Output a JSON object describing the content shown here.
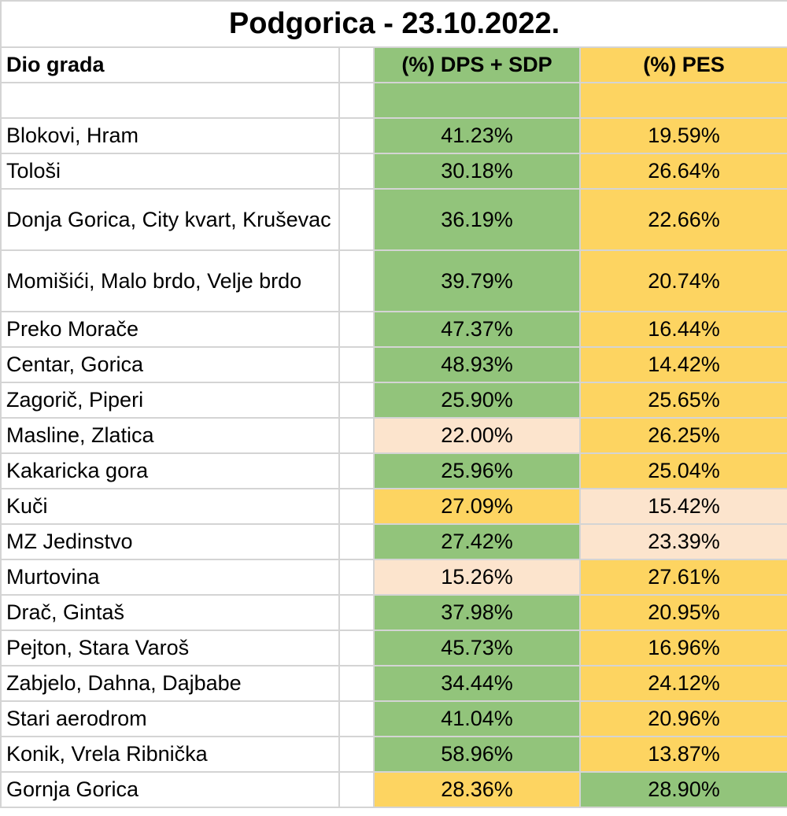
{
  "title": "Podgorica - 23.10.2022.",
  "headers": {
    "area": "Dio grada",
    "dps": "(%) DPS + SDP",
    "pes": "(%) PES"
  },
  "colors": {
    "green": "#92c47b",
    "yellow": "#fdd461",
    "peach": "#fce4cd",
    "white": "#ffffff"
  },
  "rows": [
    {
      "area": "Blokovi, Hram",
      "dps": "41.23%",
      "pes": "19.59%",
      "dps_color": "green",
      "pes_color": "yellow",
      "lines": 1
    },
    {
      "area": "Tološi",
      "dps": "30.18%",
      "pes": "26.64%",
      "dps_color": "green",
      "pes_color": "yellow",
      "lines": 1
    },
    {
      "area": "Donja Gorica, City kvart, Kruševac",
      "dps": "36.19%",
      "pes": "22.66%",
      "dps_color": "green",
      "pes_color": "yellow",
      "lines": 2
    },
    {
      "area": "Momišići, Malo brdo, Velje brdo",
      "dps": "39.79%",
      "pes": "20.74%",
      "dps_color": "green",
      "pes_color": "yellow",
      "lines": 2
    },
    {
      "area": "Preko Morače",
      "dps": "47.37%",
      "pes": "16.44%",
      "dps_color": "green",
      "pes_color": "yellow",
      "lines": 1
    },
    {
      "area": "Centar, Gorica",
      "dps": "48.93%",
      "pes": "14.42%",
      "dps_color": "green",
      "pes_color": "yellow",
      "lines": 1
    },
    {
      "area": "Zagorič, Piperi",
      "dps": "25.90%",
      "pes": "25.65%",
      "dps_color": "green",
      "pes_color": "yellow",
      "lines": 1
    },
    {
      "area": "Masline, Zlatica",
      "dps": "22.00%",
      "pes": "26.25%",
      "dps_color": "peach",
      "pes_color": "yellow",
      "lines": 1
    },
    {
      "area": "Kakaricka gora",
      "dps": "25.96%",
      "pes": "25.04%",
      "dps_color": "green",
      "pes_color": "yellow",
      "lines": 1
    },
    {
      "area": "Kuči",
      "dps": "27.09%",
      "pes": "15.42%",
      "dps_color": "yellow",
      "pes_color": "peach",
      "lines": 1
    },
    {
      "area": "MZ Jedinstvo",
      "dps": "27.42%",
      "pes": "23.39%",
      "dps_color": "green",
      "pes_color": "peach",
      "lines": 1
    },
    {
      "area": "Murtovina",
      "dps": "15.26%",
      "pes": "27.61%",
      "dps_color": "peach",
      "pes_color": "yellow",
      "lines": 1
    },
    {
      "area": "Drač, Gintaš",
      "dps": "37.98%",
      "pes": "20.95%",
      "dps_color": "green",
      "pes_color": "yellow",
      "lines": 1
    },
    {
      "area": "Pejton, Stara Varoš",
      "dps": "45.73%",
      "pes": "16.96%",
      "dps_color": "green",
      "pes_color": "yellow",
      "lines": 1
    },
    {
      "area": "Zabjelo, Dahna, Dajbabe",
      "dps": "34.44%",
      "pes": "24.12%",
      "dps_color": "green",
      "pes_color": "yellow",
      "lines": 1
    },
    {
      "area": "Stari aerodrom",
      "dps": "41.04%",
      "pes": "20.96%",
      "dps_color": "green",
      "pes_color": "yellow",
      "lines": 1
    },
    {
      "area": "Konik, Vrela Ribnička",
      "dps": "58.96%",
      "pes": "13.87%",
      "dps_color": "green",
      "pes_color": "yellow",
      "lines": 1
    },
    {
      "area": "Gornja Gorica",
      "dps": "28.36%",
      "pes": "28.90%",
      "dps_color": "yellow",
      "pes_color": "green",
      "lines": 1
    }
  ]
}
